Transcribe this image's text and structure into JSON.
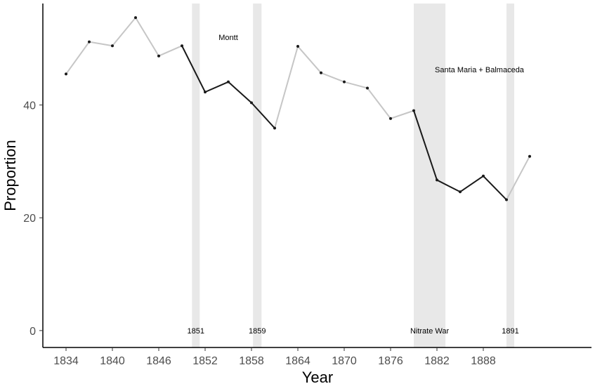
{
  "chart_data": {
    "type": "line",
    "title": "",
    "xlabel": "Year",
    "ylabel": "Proportion",
    "xlim": [
      1831,
      1902
    ],
    "ylim": [
      -3,
      58
    ],
    "x_ticks": [
      1834,
      1840,
      1846,
      1852,
      1858,
      1864,
      1870,
      1876,
      1882,
      1888
    ],
    "y_ticks": [
      0,
      20,
      40
    ],
    "grid": false,
    "colors": {
      "line_default": "#c6c6c6",
      "line_highlight": "#1a1a1a",
      "shade": "#e8e8e8",
      "point": "#1a1a1a"
    },
    "series": [
      {
        "x": [
          1834,
          1837,
          1840,
          1843,
          1846,
          1849,
          1852,
          1855,
          1858,
          1861,
          1864,
          1867,
          1870,
          1873,
          1876,
          1879,
          1882,
          1885,
          1888,
          1891,
          1894
        ],
        "values": [
          45.5,
          51.2,
          50.5,
          55.5,
          48.7,
          50.5,
          42.3,
          44.1,
          40.4,
          35.9,
          50.4,
          45.7,
          44.1,
          43.0,
          37.6,
          39.0,
          26.7,
          24.6,
          27.4,
          23.2,
          30.9
        ],
        "highlight_segments": [
          [
            1849,
            1861
          ],
          [
            1879,
            1891
          ]
        ]
      }
    ],
    "shaded_periods": [
      {
        "start": 1850.3,
        "end": 1851.3,
        "label": "1851"
      },
      {
        "start": 1858.2,
        "end": 1859.3,
        "label": "1859"
      },
      {
        "start": 1879.0,
        "end": 1883.1,
        "label": "Nitrate War"
      },
      {
        "start": 1891.0,
        "end": 1892.0,
        "label": "1891"
      }
    ],
    "annotations": [
      {
        "text": "Montt",
        "x": 1855.0,
        "y": 51.5
      },
      {
        "text": "Santa Maria + Balmaceda",
        "x": 1887.5,
        "y": 45.8
      }
    ]
  }
}
